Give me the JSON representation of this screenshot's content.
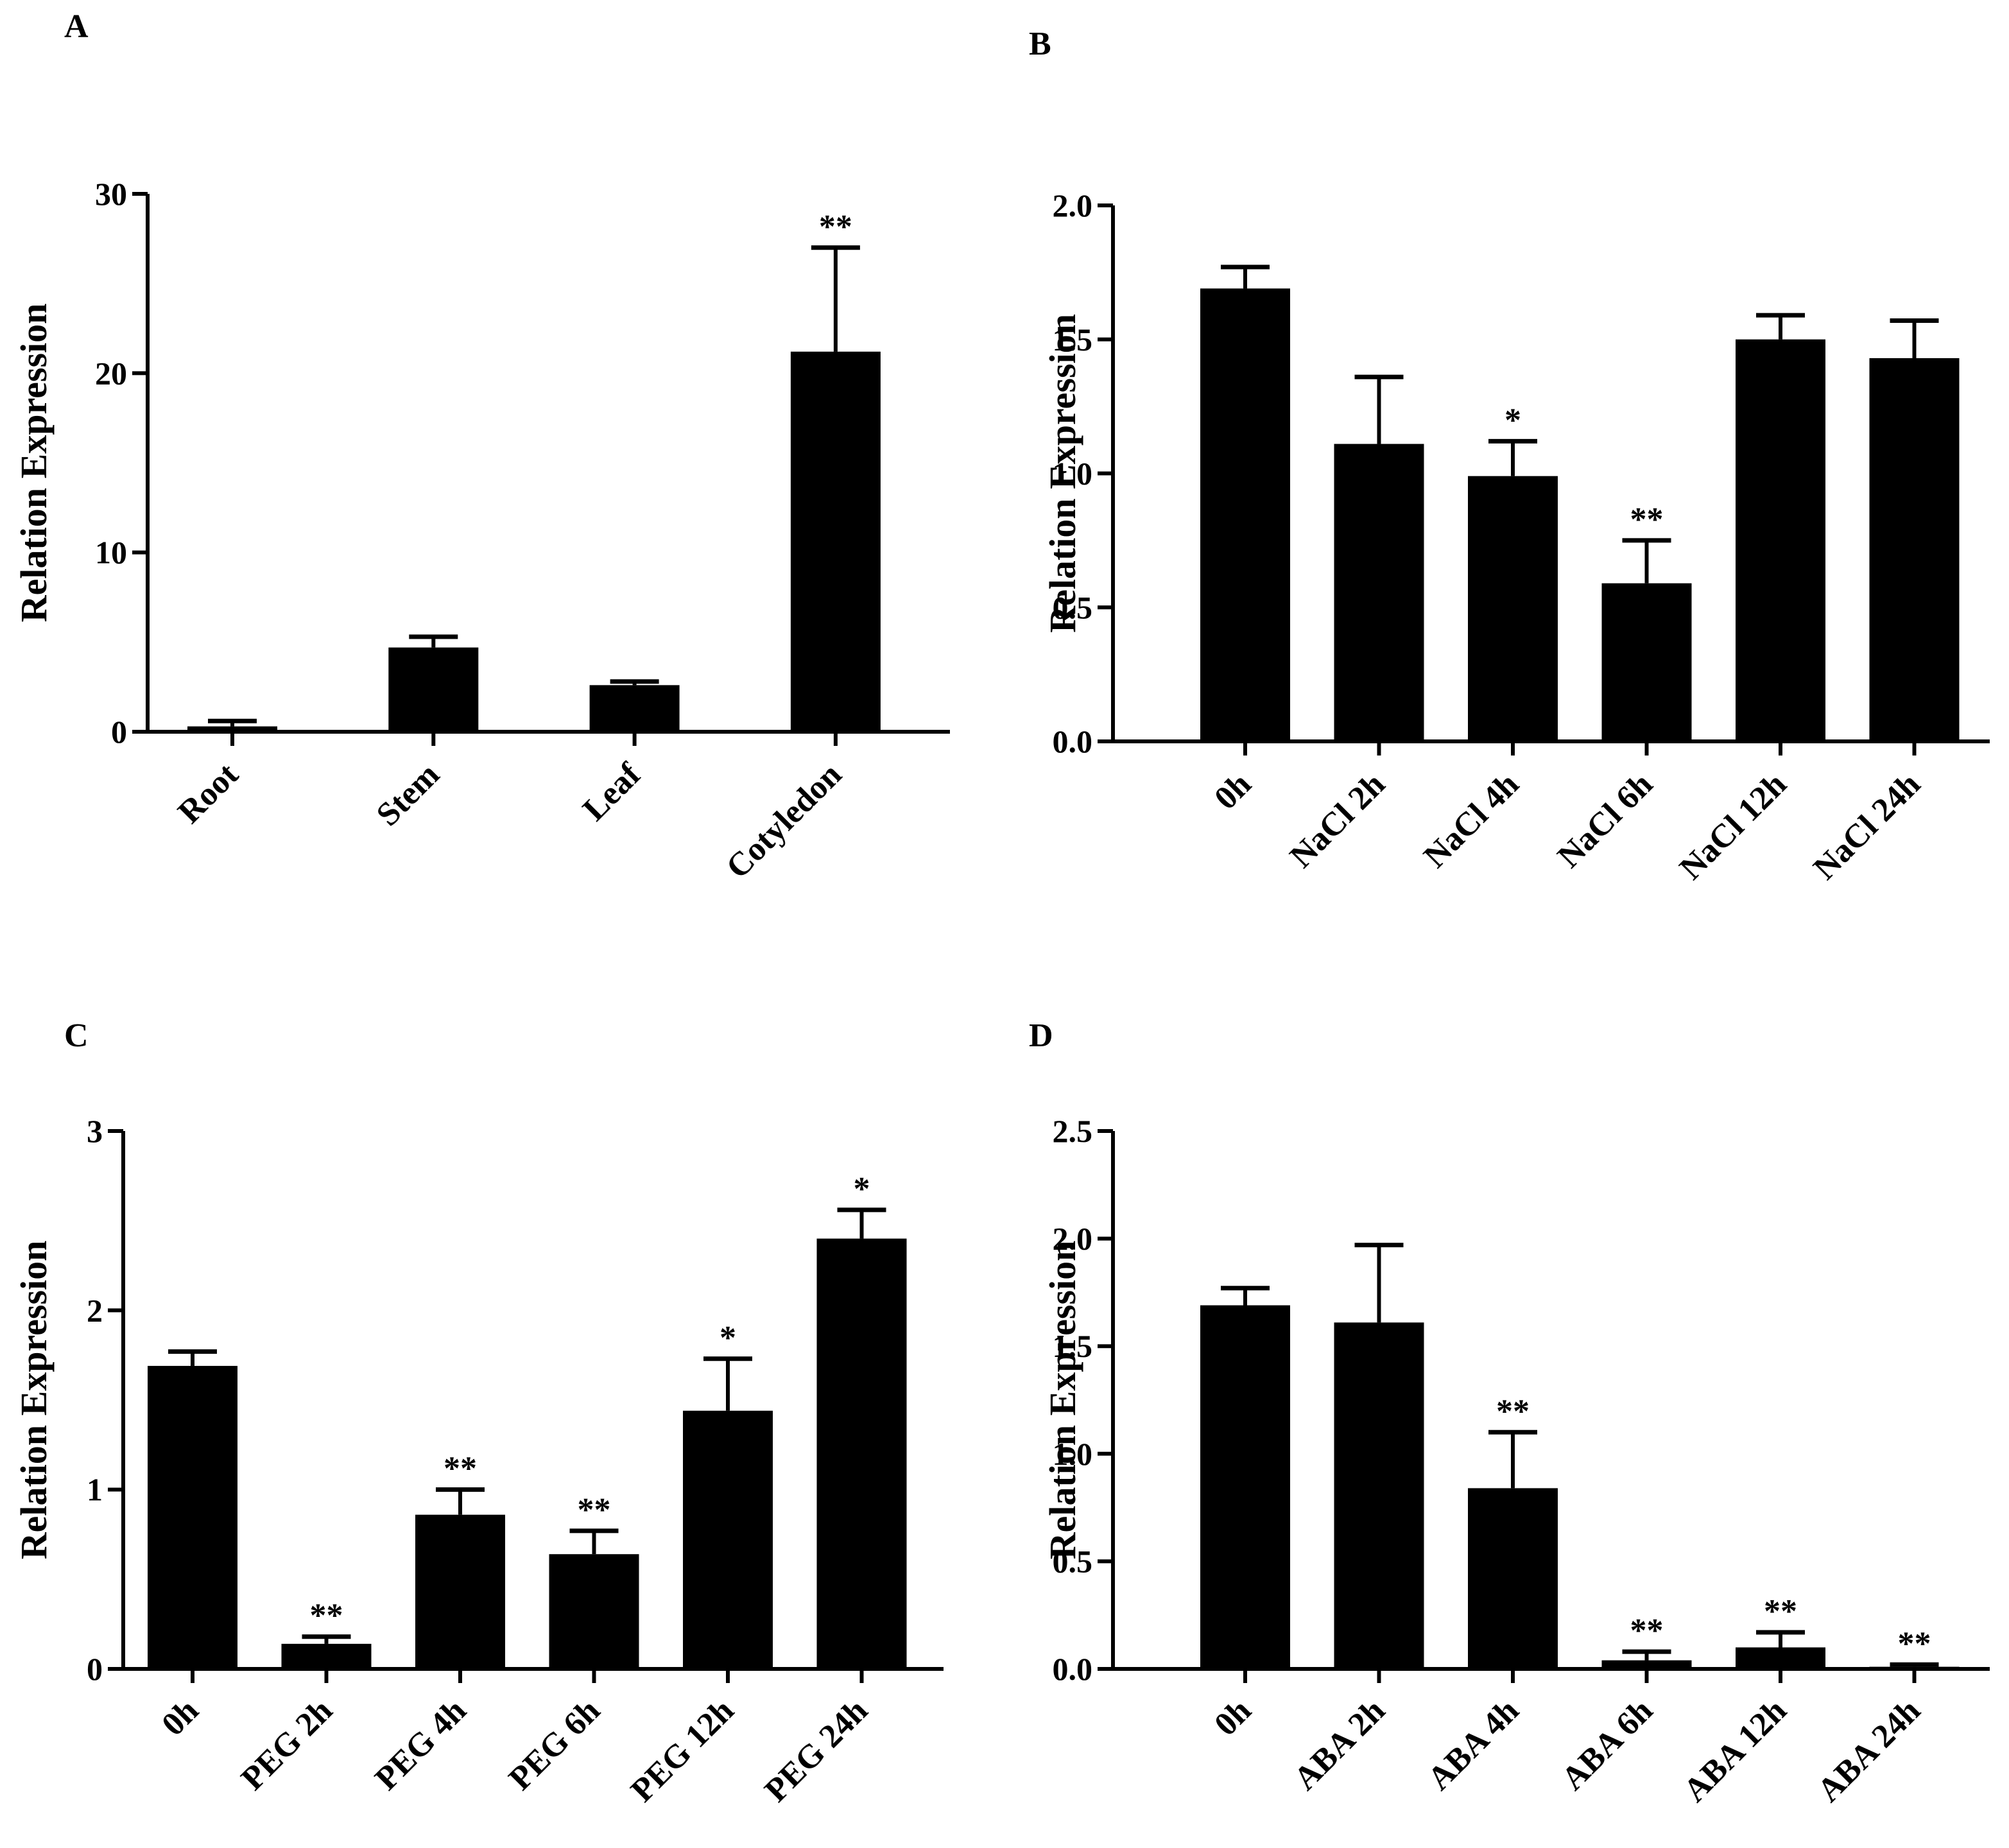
{
  "figure": {
    "name": "gene-expression-figure"
  },
  "chart_data": [
    {
      "panel": "A",
      "type": "bar",
      "title": "",
      "xlabel": "",
      "ylabel": "Relation Expression",
      "ylim": [
        0,
        30
      ],
      "yticks": [
        0,
        10,
        20,
        30
      ],
      "ytick_labels": [
        "0",
        "10",
        "20",
        "30"
      ],
      "categories": [
        "Root",
        "Stem",
        "Leaf",
        "Cotyledon"
      ],
      "values": [
        0.3,
        4.7,
        2.6,
        21.2
      ],
      "errors": [
        0.3,
        0.6,
        0.2,
        5.8
      ],
      "significance": [
        "",
        "",
        "",
        "**"
      ]
    },
    {
      "panel": "B",
      "type": "bar",
      "title": "",
      "xlabel": "",
      "ylabel": "Relation Expression",
      "ylim": [
        0,
        2.0
      ],
      "yticks": [
        0,
        0.5,
        1.0,
        1.5,
        2.0
      ],
      "ytick_labels": [
        "0.0",
        "0.5",
        "1.0",
        "1.5",
        "2.0"
      ],
      "categories": [
        "0h",
        "NaCl  2h",
        "NaCl  4h",
        "NaCl 6h",
        "NaCl 12h",
        "NaCl 24h"
      ],
      "values": [
        1.69,
        1.11,
        0.99,
        0.59,
        1.5,
        1.43
      ],
      "errors": [
        0.08,
        0.25,
        0.13,
        0.16,
        0.09,
        0.14
      ],
      "significance": [
        "",
        "",
        "*",
        "**",
        "",
        ""
      ]
    },
    {
      "panel": "C",
      "type": "bar",
      "title": "",
      "xlabel": "",
      "ylabel": "Relation Expression",
      "ylim": [
        0,
        3
      ],
      "yticks": [
        0,
        1,
        2,
        3
      ],
      "ytick_labels": [
        "0",
        "1",
        "2",
        "3"
      ],
      "categories": [
        "0h",
        "PEG 2h",
        "PEG 4h",
        "PEG 6h",
        "PEG 12h",
        "PEG 24h"
      ],
      "values": [
        1.69,
        0.14,
        0.86,
        0.64,
        1.44,
        2.4
      ],
      "errors": [
        0.08,
        0.04,
        0.14,
        0.13,
        0.29,
        0.16
      ],
      "significance": [
        "",
        "**",
        "**",
        "**",
        "*",
        "*"
      ]
    },
    {
      "panel": "D",
      "type": "bar",
      "title": "",
      "xlabel": "",
      "ylabel": "Relation Expression",
      "ylim": [
        0,
        2.5
      ],
      "yticks": [
        0,
        0.5,
        1.0,
        1.5,
        2.0,
        2.5
      ],
      "ytick_labels": [
        "0.0",
        "0.5",
        "1.0",
        "1.5",
        "2.0",
        "2.5"
      ],
      "categories": [
        "0h",
        "ABA 2h",
        "ABA 4h",
        "ABA 6h",
        "ABA 12h",
        "ABA 24h"
      ],
      "values": [
        1.69,
        1.61,
        0.84,
        0.04,
        0.1,
        0.01
      ],
      "errors": [
        0.08,
        0.36,
        0.26,
        0.04,
        0.07,
        0.01
      ],
      "significance": [
        "",
        "",
        "**",
        "**",
        "**",
        "**"
      ]
    }
  ]
}
